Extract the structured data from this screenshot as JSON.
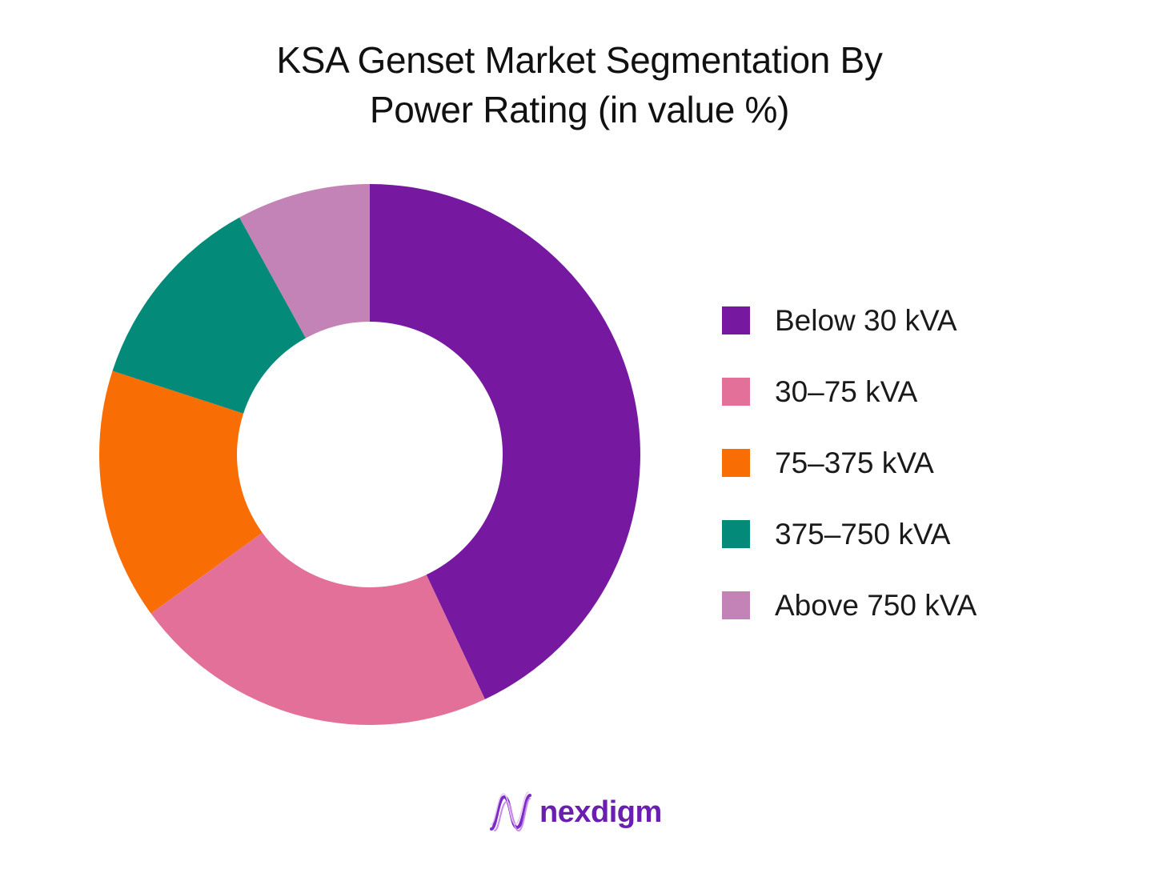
{
  "chart_data": {
    "type": "pie",
    "title_lines": [
      "KSA Genset Market Segmentation By",
      "Power Rating (in value %)"
    ],
    "donut": true,
    "legend_position": "right",
    "slices": [
      {
        "label": "Below 30 kVA",
        "value": 43,
        "color": "#7719a0"
      },
      {
        "label": "30–75 kVA",
        "value": 22,
        "color": "#e27098"
      },
      {
        "label": "75–375 kVA",
        "value": 15,
        "color": "#f86e05"
      },
      {
        "label": "375–750 kVA",
        "value": 12,
        "color": "#038a78"
      },
      {
        "label": "Above 750 kVA",
        "value": 8,
        "color": "#c383b7"
      }
    ]
  },
  "brand": {
    "name": "nexdigm",
    "color": "#6a1fb0"
  }
}
